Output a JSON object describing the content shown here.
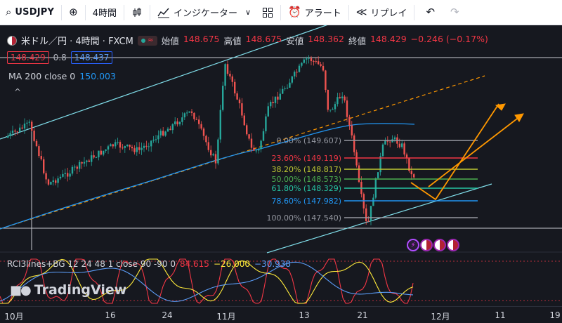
{
  "toolbar": {
    "symbol": "USDJPY",
    "interval": "4時間",
    "indicators_label": "インジケーター",
    "alert_label": "アラート",
    "replay_label": "リプレイ",
    "icons": [
      "search-icon",
      "add-symbol-icon",
      "candles-icon",
      "indicators-icon",
      "chevron-down-icon",
      "layouts-icon",
      "alert-icon",
      "replay-icon",
      "undo-icon",
      "redo-icon"
    ]
  },
  "legend": {
    "pair_title": "米ドル／円 · 4時間 · FXCM",
    "open_label": "始値",
    "open": "148.675",
    "high_label": "高値",
    "high": "148.675",
    "low_label": "安値",
    "low": "148.362",
    "close_label": "終値",
    "close": "148.429",
    "change": "−0.246 (−0.17%)",
    "sell_price": "148.429",
    "spread": "0.8",
    "buy_price": "148.437",
    "ma_label": "MA 200 close 0",
    "ma_value": "150.003",
    "collapse_icon": "^"
  },
  "fib_levels": [
    {
      "label": "0.00% (149.607)",
      "color": "#9598a1"
    },
    {
      "label": "23.60% (149.119)",
      "color": "#f23645"
    },
    {
      "label": "38.20% (148.817)",
      "color": "#c0ca33"
    },
    {
      "label": "50.00% (148.573)",
      "color": "#4caf50"
    },
    {
      "label": "61.80% (148.329)",
      "color": "#26c6a4"
    },
    {
      "label": "78.60% (147.982)",
      "color": "#2196f3"
    },
    {
      "label": "100.00% (147.540)",
      "color": "#9598a1"
    }
  ],
  "indicator": {
    "name": "RCI3lines+BG 12 24 48 1 close 90 -90 0",
    "v1": "84.615",
    "v2": "−26.000",
    "v3": "−30.938"
  },
  "brand": "TradingView",
  "time_axis": [
    "10月",
    "16",
    "24",
    "11月",
    "13",
    "21",
    "12月",
    "11",
    "19"
  ],
  "colors": {
    "up": "#26a69a",
    "down": "#ef5350",
    "ma": "#2196f3",
    "channel": "#80deea",
    "trend_dashed": "#ff9800",
    "projection": "#ff9800"
  },
  "chart_data": {
    "type": "candlestick",
    "x": [
      "10月",
      "16",
      "24",
      "11月",
      "13",
      "21",
      "12月",
      "11",
      "19"
    ],
    "series": [
      {
        "name": "MA 200 close 0",
        "last": 150.003
      }
    ],
    "last_close": 148.429,
    "fib_retracement": [
      149.607,
      149.119,
      148.817,
      148.573,
      148.329,
      147.982,
      147.54
    ],
    "grid": false
  }
}
